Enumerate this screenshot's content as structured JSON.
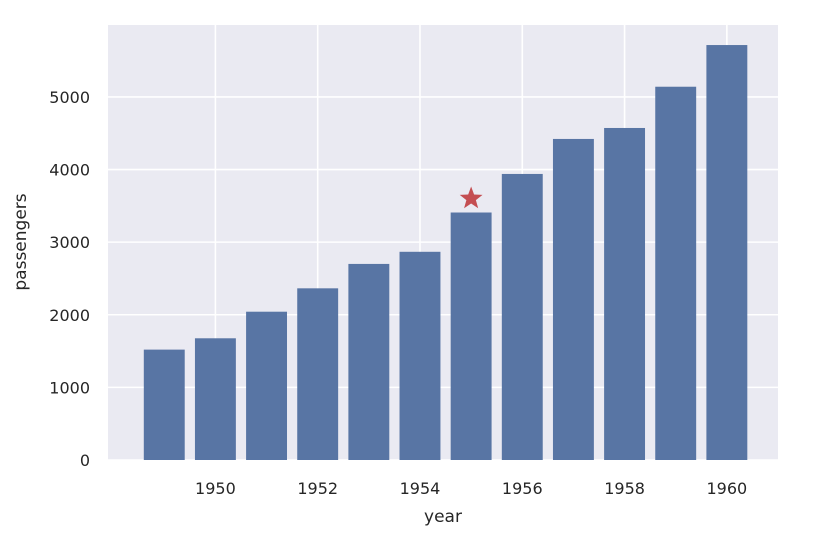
{
  "chart_data": {
    "type": "bar",
    "xlabel": "year",
    "ylabel": "passengers",
    "x": [
      1949,
      1950,
      1951,
      1952,
      1953,
      1954,
      1955,
      1956,
      1957,
      1958,
      1959,
      1960
    ],
    "values": [
      1520,
      1676,
      2042,
      2364,
      2700,
      2867,
      3408,
      3939,
      4421,
      4572,
      5140,
      5714
    ],
    "xlim": [
      1947.9,
      1961.0
    ],
    "ylim": [
      0,
      5990
    ],
    "xticks": [
      1950,
      1952,
      1954,
      1956,
      1958,
      1960
    ],
    "yticks": [
      0,
      1000,
      2000,
      3000,
      4000,
      5000
    ],
    "grid": true,
    "bar_color": "#5875a4",
    "background_color": "#eaeaf2",
    "marker": {
      "shape": "star",
      "x": 1955,
      "y": 3600,
      "color": "#c44e52"
    }
  }
}
